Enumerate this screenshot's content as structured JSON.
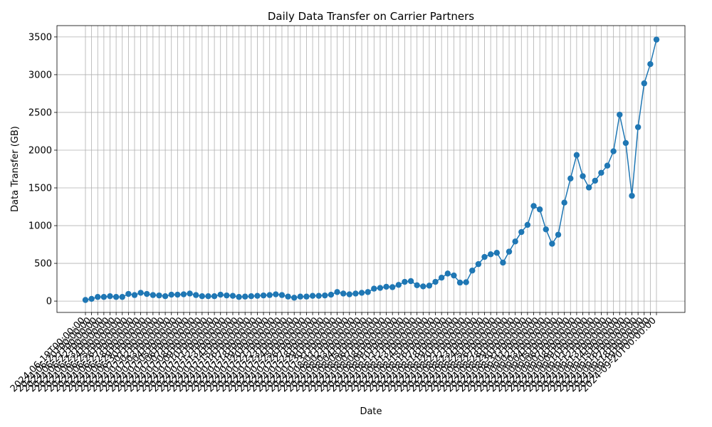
{
  "chart_data": {
    "type": "line",
    "title": "Daily Data Transfer on Carrier Partners",
    "xlabel": "Date",
    "ylabel": "Data Transfer (GB)",
    "ylim": [
      -150,
      3650
    ],
    "yticks": [
      0,
      500,
      1000,
      1500,
      2000,
      2500,
      3000,
      3500
    ],
    "grid": true,
    "line_color": "#1f77b4",
    "marker": "circle",
    "x": [
      "2024-06-19T00:00:00",
      "2024-06-20T00:00:00",
      "2024-06-21T00:00:00",
      "2024-06-22T00:00:00",
      "2024-06-23T00:00:00",
      "2024-06-24T00:00:00",
      "2024-06-25T00:00:00",
      "2024-06-26T00:00:00",
      "2024-06-27T00:00:00",
      "2024-06-28T00:00:00",
      "2024-06-29T00:00:00",
      "2024-06-30T00:00:00",
      "2024-07-01T00:00:00",
      "2024-07-02T00:00:00",
      "2024-07-03T00:00:00",
      "2024-07-04T00:00:00",
      "2024-07-05T00:00:00",
      "2024-07-06T00:00:00",
      "2024-07-07T00:00:00",
      "2024-07-08T00:00:00",
      "2024-07-09T00:00:00",
      "2024-07-10T00:00:00",
      "2024-07-11T00:00:00",
      "2024-07-12T00:00:00",
      "2024-07-13T00:00:00",
      "2024-07-14T00:00:00",
      "2024-07-15T00:00:00",
      "2024-07-16T00:00:00",
      "2024-07-17T00:00:00",
      "2024-07-18T00:00:00",
      "2024-07-19T00:00:00",
      "2024-07-20T00:00:00",
      "2024-07-21T00:00:00",
      "2024-07-22T00:00:00",
      "2024-07-23T00:00:00",
      "2024-07-24T00:00:00",
      "2024-07-25T00:00:00",
      "2024-07-26T00:00:00",
      "2024-07-27T00:00:00",
      "2024-07-28T00:00:00",
      "2024-07-29T00:00:00",
      "2024-07-30T00:00:00",
      "2024-07-31T00:00:00",
      "2024-08-01T00:00:00",
      "2024-08-02T00:00:00",
      "2024-08-03T00:00:00",
      "2024-08-04T00:00:00",
      "2024-08-05T00:00:00",
      "2024-08-06T00:00:00",
      "2024-08-07T00:00:00",
      "2024-08-08T00:00:00",
      "2024-08-09T00:00:00",
      "2024-08-10T00:00:00",
      "2024-08-11T00:00:00",
      "2024-08-12T00:00:00",
      "2024-08-13T00:00:00",
      "2024-08-14T00:00:00",
      "2024-08-15T00:00:00",
      "2024-08-16T00:00:00",
      "2024-08-17T00:00:00",
      "2024-08-18T00:00:00",
      "2024-08-19T00:00:00",
      "2024-08-20T00:00:00",
      "2024-08-21T00:00:00",
      "2024-08-22T00:00:00",
      "2024-08-23T00:00:00",
      "2024-08-24T00:00:00",
      "2024-08-25T00:00:00",
      "2024-08-26T00:00:00",
      "2024-08-27T00:00:00",
      "2024-08-28T00:00:00",
      "2024-08-29T00:00:00",
      "2024-08-30T00:00:00",
      "2024-08-31T00:00:00",
      "2024-09-01T00:00:00",
      "2024-09-02T00:00:00",
      "2024-09-03T00:00:00",
      "2024-09-04T00:00:00",
      "2024-09-05T00:00:00",
      "2024-09-06T00:00:00",
      "2024-09-07T00:00:00",
      "2024-09-08T00:00:00",
      "2024-09-09T00:00:00",
      "2024-09-10T00:00:00",
      "2024-09-11T00:00:00",
      "2024-09-12T00:00:00",
      "2024-09-13T00:00:00",
      "2024-09-14T00:00:00",
      "2024-09-15T00:00:00",
      "2024-09-16T00:00:00",
      "2024-09-17T00:00:00",
      "2024-09-18T00:00:00",
      "2024-09-19T00:00:00",
      "2024-09-20T00:00:00"
    ],
    "series": [
      {
        "values": [
          15,
          30,
          55,
          55,
          65,
          55,
          55,
          95,
          80,
          110,
          95,
          80,
          75,
          65,
          85,
          85,
          90,
          100,
          80,
          65,
          65,
          65,
          85,
          75,
          70,
          55,
          60,
          65,
          70,
          75,
          80,
          90,
          80,
          60,
          45,
          60,
          60,
          70,
          70,
          75,
          85,
          120,
          100,
          90,
          100,
          110,
          120,
          165,
          175,
          190,
          185,
          215,
          255,
          265,
          210,
          195,
          205,
          255,
          310,
          365,
          340,
          245,
          250,
          405,
          490,
          585,
          620,
          640,
          510,
          655,
          790,
          915,
          1010,
          1260,
          1215,
          950,
          760,
          880,
          1305,
          1625,
          1935,
          1655,
          1505,
          1595,
          1700,
          1795,
          1985,
          2470,
          2095,
          1395,
          2305,
          2885,
          3140,
          3465
        ]
      }
    ]
  }
}
